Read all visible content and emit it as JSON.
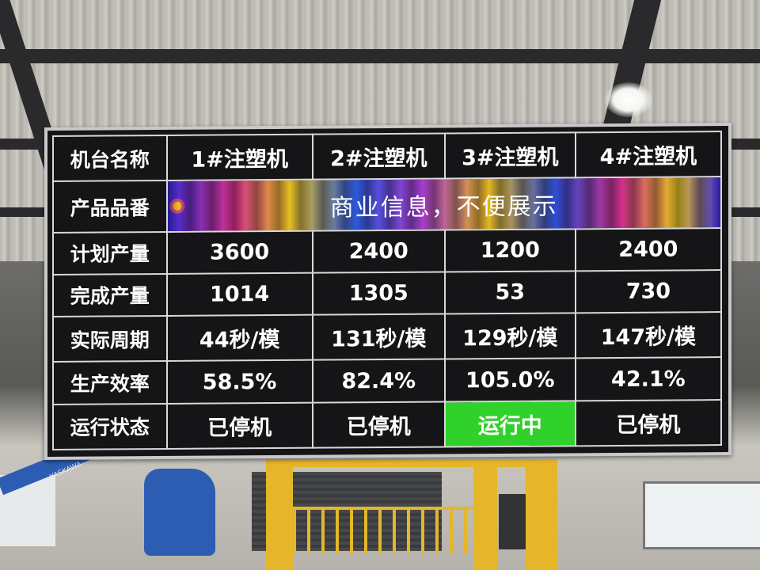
{
  "board": {
    "header": {
      "label": "机台名称",
      "machines": [
        "1#注塑机",
        "2#注塑机",
        "3#注塑机",
        "4#注塑机"
      ]
    },
    "rows": [
      {
        "label": "产品品番",
        "masked_text": "商业信息，不便展示"
      },
      {
        "label": "计划产量",
        "values": [
          "3600",
          "2400",
          "1200",
          "2400"
        ]
      },
      {
        "label": "完成产量",
        "values": [
          "1014",
          "1305",
          "53",
          "730"
        ]
      },
      {
        "label": "实际周期",
        "values": [
          "44秒/模",
          "131秒/模",
          "129秒/模",
          "147秒/模"
        ]
      },
      {
        "label": "生产效率",
        "values": [
          "58.5%",
          "82.4%",
          "105.0%",
          "42.1%"
        ]
      },
      {
        "label": "运行状态",
        "values": [
          "已停机",
          "已停机",
          "运行中",
          "已停机"
        ]
      }
    ],
    "status_colors": {
      "running": "#2fd12a",
      "stopped": "#151518"
    }
  },
  "scene": {
    "robot_brand": "YASKAWA"
  }
}
